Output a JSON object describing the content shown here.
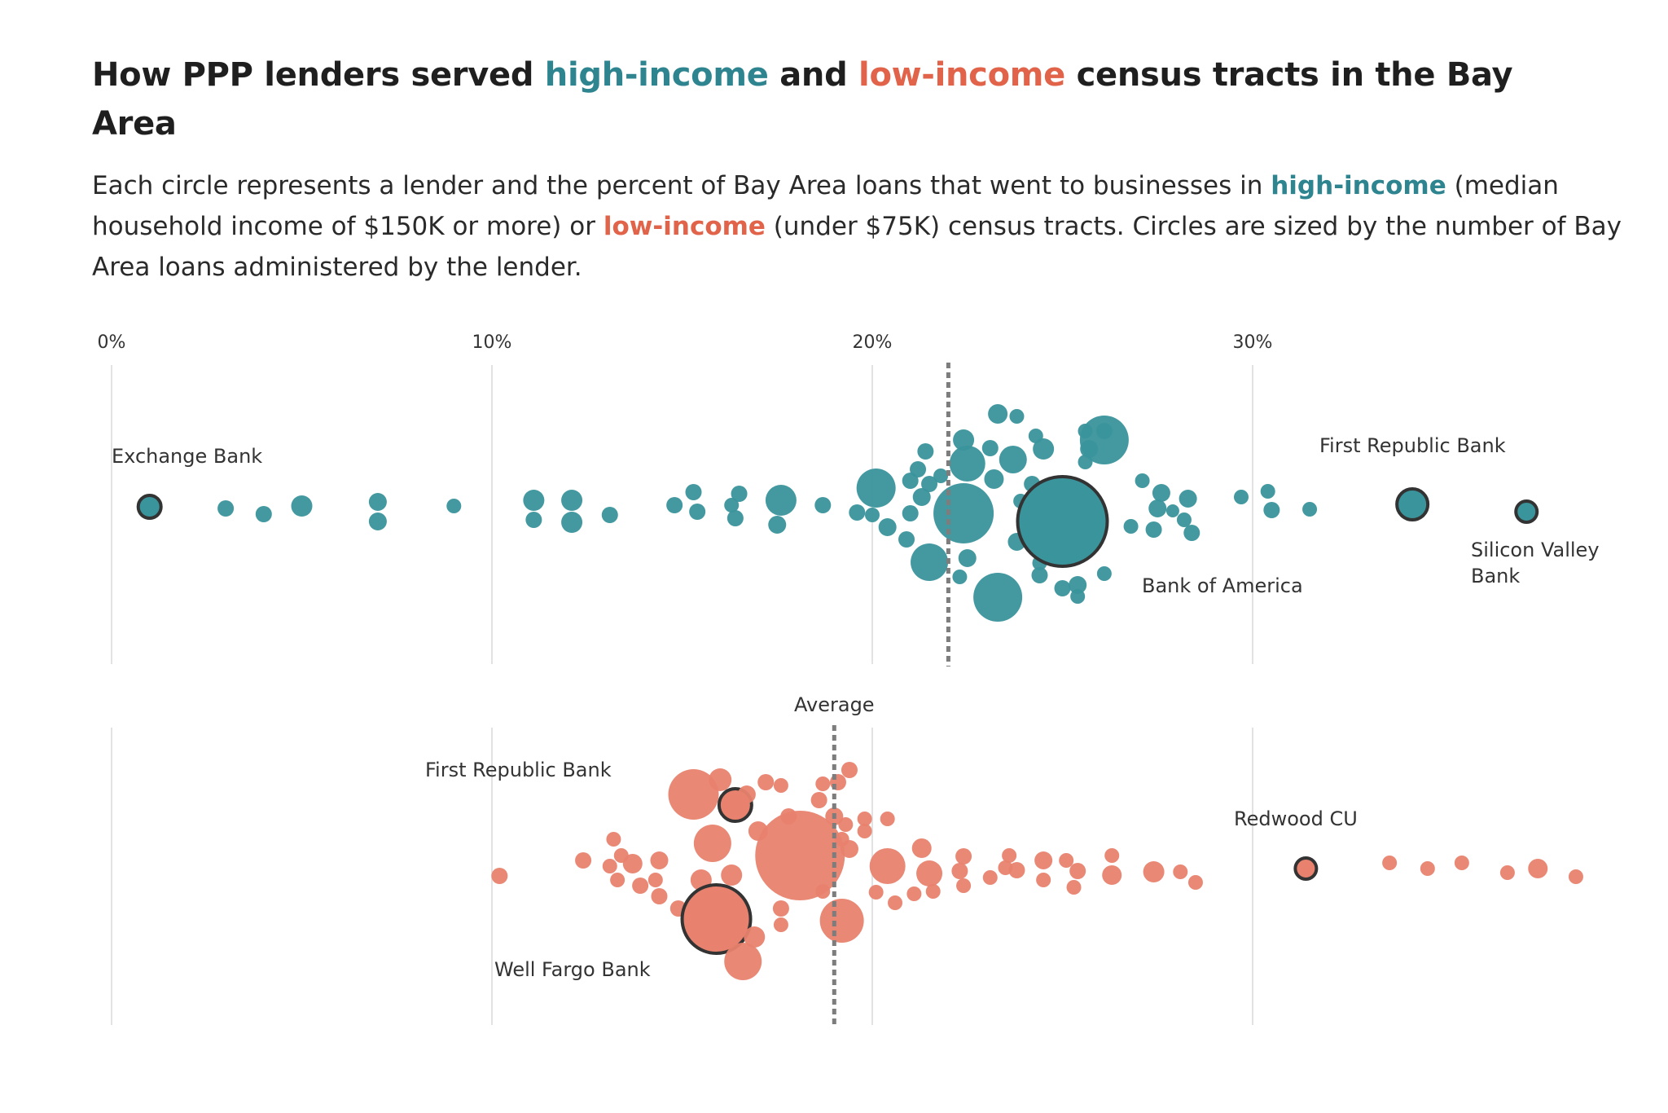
{
  "header": {
    "title_part1": "How PPP lenders served ",
    "title_high": "high-income",
    "title_part2": " and ",
    "title_low": "low-income",
    "title_part3": " census tracts in the Bay Area",
    "desc_part1": "Each circle represents a lender and the percent of Bay Area loans that went to businesses in ",
    "desc_high": "high-income",
    "desc_part2": " (median household income of $150K or more) or ",
    "desc_low": "low-income",
    "desc_part3": " (under $75K) census tracts. Circles are sized by the number of Bay Area loans administered by the lender."
  },
  "colors": {
    "high": "#2e8590",
    "low": "#e0634a",
    "high_fill": "#3a949c",
    "low_fill": "#e8826e"
  },
  "chart_data": {
    "type": "scatter",
    "subtype": "beeswarm",
    "x_unit": "percent",
    "xlim": [
      0,
      35
    ],
    "ticks": [
      {
        "value": 0,
        "label": "0%"
      },
      {
        "value": 10,
        "label": "10%"
      },
      {
        "value": 20,
        "label": "20%"
      },
      {
        "value": 30,
        "label": "30%"
      }
    ],
    "average_label": "Average",
    "series": [
      {
        "name": "high-income",
        "average": 22.0,
        "labels": [
          {
            "text": "Exchange Bank",
            "lines": [
              "Exchange Bank"
            ]
          },
          {
            "text": "First Republic Bank",
            "lines": [
              "First Republic Bank"
            ]
          },
          {
            "text": "Silicon Valley Bank",
            "lines": [
              "Silicon Valley",
              "Bank"
            ]
          },
          {
            "text": "Bank of America",
            "lines": [
              "Bank of America"
            ]
          }
        ],
        "points": [
          {
            "x": 1.0,
            "dy": 2,
            "r": 14,
            "name": "Exchange Bank"
          },
          {
            "x": 3.0,
            "dy": 4,
            "r": 10
          },
          {
            "x": 4.0,
            "dy": 11,
            "r": 10
          },
          {
            "x": 5.0,
            "dy": 1,
            "r": 13
          },
          {
            "x": 7.0,
            "dy": -4,
            "r": 11
          },
          {
            "x": 7.0,
            "dy": 20,
            "r": 11
          },
          {
            "x": 9.0,
            "dy": 1,
            "r": 9
          },
          {
            "x": 11.1,
            "dy": -6,
            "r": 13
          },
          {
            "x": 11.1,
            "dy": 18,
            "r": 10
          },
          {
            "x": 12.1,
            "dy": -6,
            "r": 13
          },
          {
            "x": 12.1,
            "dy": 21,
            "r": 13
          },
          {
            "x": 13.1,
            "dy": 12,
            "r": 10
          },
          {
            "x": 14.8,
            "dy": 0,
            "r": 10
          },
          {
            "x": 15.3,
            "dy": -16,
            "r": 10
          },
          {
            "x": 15.4,
            "dy": 8,
            "r": 10
          },
          {
            "x": 16.3,
            "dy": 0,
            "r": 9
          },
          {
            "x": 16.5,
            "dy": -14,
            "r": 10
          },
          {
            "x": 16.4,
            "dy": 16,
            "r": 10
          },
          {
            "x": 17.6,
            "dy": -6,
            "r": 19
          },
          {
            "x": 17.5,
            "dy": 24,
            "r": 11
          },
          {
            "x": 18.7,
            "dy": 0,
            "r": 10
          },
          {
            "x": 19.6,
            "dy": 9,
            "r": 10
          },
          {
            "x": 20.1,
            "dy": -21,
            "r": 24
          },
          {
            "x": 20.0,
            "dy": 12,
            "r": 9
          },
          {
            "x": 20.4,
            "dy": 27,
            "r": 11
          },
          {
            "x": 21.4,
            "dy": -66,
            "r": 10
          },
          {
            "x": 21.2,
            "dy": -44,
            "r": 10
          },
          {
            "x": 21.3,
            "dy": -10,
            "r": 11
          },
          {
            "x": 21.0,
            "dy": -30,
            "r": 10
          },
          {
            "x": 21.0,
            "dy": 10,
            "r": 10
          },
          {
            "x": 20.9,
            "dy": 42,
            "r": 10
          },
          {
            "x": 21.5,
            "dy": -26,
            "r": 10
          },
          {
            "x": 21.8,
            "dy": -36,
            "r": 9
          },
          {
            "x": 22.4,
            "dy": -80,
            "r": 13
          },
          {
            "x": 22.5,
            "dy": -51,
            "r": 22
          },
          {
            "x": 22.4,
            "dy": 10,
            "r": 37
          },
          {
            "x": 21.5,
            "dy": 70,
            "r": 23
          },
          {
            "x": 22.5,
            "dy": 65,
            "r": 11
          },
          {
            "x": 22.3,
            "dy": 88,
            "r": 9
          },
          {
            "x": 23.1,
            "dy": -70,
            "r": 10
          },
          {
            "x": 23.2,
            "dy": -32,
            "r": 12
          },
          {
            "x": 23.3,
            "dy": -112,
            "r": 12
          },
          {
            "x": 23.7,
            "dy": -56,
            "r": 17
          },
          {
            "x": 23.9,
            "dy": -5,
            "r": 9
          },
          {
            "x": 23.8,
            "dy": 45,
            "r": 11
          },
          {
            "x": 23.3,
            "dy": 113,
            "r": 30
          },
          {
            "x": 23.8,
            "dy": -109,
            "r": 9
          },
          {
            "x": 24.3,
            "dy": -85,
            "r": 9
          },
          {
            "x": 24.5,
            "dy": -69,
            "r": 13
          },
          {
            "x": 24.2,
            "dy": -26,
            "r": 10
          },
          {
            "x": 24.4,
            "dy": 71,
            "r": 9
          },
          {
            "x": 24.4,
            "dy": 86,
            "r": 10
          },
          {
            "x": 25.0,
            "dy": 20,
            "r": 55,
            "name": "Bank of America"
          },
          {
            "x": 25.0,
            "dy": 102,
            "r": 10
          },
          {
            "x": 25.6,
            "dy": -91,
            "r": 9
          },
          {
            "x": 26.1,
            "dy": -91,
            "r": 10
          },
          {
            "x": 25.7,
            "dy": -69,
            "r": 11
          },
          {
            "x": 25.6,
            "dy": -53,
            "r": 9
          },
          {
            "x": 25.4,
            "dy": 98,
            "r": 11
          },
          {
            "x": 25.4,
            "dy": 112,
            "r": 9
          },
          {
            "x": 26.1,
            "dy": 84,
            "r": 9
          },
          {
            "x": 26.1,
            "dy": -80,
            "r": 30
          },
          {
            "x": 27.1,
            "dy": -30,
            "r": 9
          },
          {
            "x": 27.6,
            "dy": -15,
            "r": 11
          },
          {
            "x": 27.5,
            "dy": 4,
            "r": 11
          },
          {
            "x": 26.8,
            "dy": 26,
            "r": 9
          },
          {
            "x": 27.4,
            "dy": 30,
            "r": 10
          },
          {
            "x": 28.3,
            "dy": -8,
            "r": 11
          },
          {
            "x": 27.9,
            "dy": 7,
            "r": 8
          },
          {
            "x": 28.2,
            "dy": 18,
            "r": 9
          },
          {
            "x": 28.4,
            "dy": 34,
            "r": 10
          },
          {
            "x": 29.7,
            "dy": -10,
            "r": 9
          },
          {
            "x": 30.4,
            "dy": -17,
            "r": 9
          },
          {
            "x": 30.5,
            "dy": 6,
            "r": 10
          },
          {
            "x": 31.5,
            "dy": 5,
            "r": 9
          },
          {
            "x": 34.2,
            "dy": -1,
            "r": 19,
            "name": "First Republic Bank"
          },
          {
            "x": 37.2,
            "dy": 8,
            "r": 13,
            "name": "Silicon Valley Bank"
          }
        ]
      },
      {
        "name": "low-income",
        "average": 19.0,
        "labels": [
          {
            "text": "First Republic Bank",
            "lines": [
              "First Republic Bank"
            ]
          },
          {
            "text": "Well Fargo Bank",
            "lines": [
              "Well Fargo Bank"
            ]
          },
          {
            "text": "Redwood CU",
            "lines": [
              "Redwood CU"
            ]
          }
        ],
        "points": [
          {
            "x": 10.2,
            "dy": 15,
            "r": 10
          },
          {
            "x": 12.4,
            "dy": -4,
            "r": 10
          },
          {
            "x": 13.1,
            "dy": 3,
            "r": 9
          },
          {
            "x": 13.2,
            "dy": -30,
            "r": 9
          },
          {
            "x": 13.3,
            "dy": 20,
            "r": 9
          },
          {
            "x": 13.4,
            "dy": -10,
            "r": 9
          },
          {
            "x": 13.7,
            "dy": 0,
            "r": 12
          },
          {
            "x": 13.9,
            "dy": 27,
            "r": 10
          },
          {
            "x": 14.4,
            "dy": -4,
            "r": 11
          },
          {
            "x": 14.3,
            "dy": 20,
            "r": 9
          },
          {
            "x": 14.4,
            "dy": 40,
            "r": 10
          },
          {
            "x": 14.9,
            "dy": 55,
            "r": 10
          },
          {
            "x": 15.3,
            "dy": -85,
            "r": 31
          },
          {
            "x": 15.5,
            "dy": 20,
            "r": 13
          },
          {
            "x": 15.8,
            "dy": -25,
            "r": 23
          },
          {
            "x": 16.0,
            "dy": -103,
            "r": 14
          },
          {
            "x": 16.3,
            "dy": 14,
            "r": 13
          },
          {
            "x": 16.4,
            "dy": -72,
            "r": 20,
            "name": "First Republic Bank"
          },
          {
            "x": 15.9,
            "dy": 68,
            "r": 42,
            "name": "Well Fargo Bank"
          },
          {
            "x": 16.7,
            "dy": -85,
            "r": 11
          },
          {
            "x": 16.6,
            "dy": 120,
            "r": 23
          },
          {
            "x": 16.9,
            "dy": 90,
            "r": 13
          },
          {
            "x": 17.0,
            "dy": -40,
            "r": 12
          },
          {
            "x": 17.2,
            "dy": -100,
            "r": 10
          },
          {
            "x": 17.6,
            "dy": -96,
            "r": 9
          },
          {
            "x": 17.6,
            "dy": 55,
            "r": 10
          },
          {
            "x": 17.6,
            "dy": 75,
            "r": 9
          },
          {
            "x": 18.1,
            "dy": -10,
            "r": 55
          },
          {
            "x": 17.8,
            "dy": -58,
            "r": 10
          },
          {
            "x": 18.7,
            "dy": -98,
            "r": 9
          },
          {
            "x": 19.1,
            "dy": -100,
            "r": 10
          },
          {
            "x": 18.6,
            "dy": -78,
            "r": 10
          },
          {
            "x": 19.0,
            "dy": -58,
            "r": 11
          },
          {
            "x": 19.3,
            "dy": -48,
            "r": 9
          },
          {
            "x": 19.2,
            "dy": -30,
            "r": 9
          },
          {
            "x": 19.4,
            "dy": -18,
            "r": 11
          },
          {
            "x": 19.4,
            "dy": -115,
            "r": 10
          },
          {
            "x": 18.7,
            "dy": 34,
            "r": 9
          },
          {
            "x": 19.2,
            "dy": 70,
            "r": 27
          },
          {
            "x": 19.8,
            "dy": -55,
            "r": 9
          },
          {
            "x": 20.4,
            "dy": -55,
            "r": 9
          },
          {
            "x": 19.8,
            "dy": -40,
            "r": 9
          },
          {
            "x": 20.4,
            "dy": 3,
            "r": 22
          },
          {
            "x": 20.1,
            "dy": 35,
            "r": 9
          },
          {
            "x": 20.6,
            "dy": 48,
            "r": 9
          },
          {
            "x": 21.3,
            "dy": -19,
            "r": 12
          },
          {
            "x": 21.5,
            "dy": 12,
            "r": 16
          },
          {
            "x": 21.6,
            "dy": 34,
            "r": 9
          },
          {
            "x": 21.1,
            "dy": 37,
            "r": 9
          },
          {
            "x": 22.4,
            "dy": -9,
            "r": 10
          },
          {
            "x": 22.3,
            "dy": 9,
            "r": 10
          },
          {
            "x": 22.4,
            "dy": 27,
            "r": 9
          },
          {
            "x": 23.1,
            "dy": 17,
            "r": 9
          },
          {
            "x": 23.5,
            "dy": 5,
            "r": 9
          },
          {
            "x": 23.6,
            "dy": -10,
            "r": 9
          },
          {
            "x": 23.8,
            "dy": 8,
            "r": 10
          },
          {
            "x": 24.5,
            "dy": -4,
            "r": 11
          },
          {
            "x": 24.5,
            "dy": 20,
            "r": 9
          },
          {
            "x": 25.1,
            "dy": -4,
            "r": 9
          },
          {
            "x": 25.4,
            "dy": 9,
            "r": 10
          },
          {
            "x": 25.3,
            "dy": 29,
            "r": 9
          },
          {
            "x": 26.3,
            "dy": -10,
            "r": 9
          },
          {
            "x": 26.3,
            "dy": 14,
            "r": 12
          },
          {
            "x": 27.4,
            "dy": 10,
            "r": 13
          },
          {
            "x": 28.1,
            "dy": 10,
            "r": 9
          },
          {
            "x": 28.5,
            "dy": 23,
            "r": 9
          },
          {
            "x": 31.4,
            "dy": 6,
            "r": 13,
            "name": "Redwood CU"
          },
          {
            "x": 33.6,
            "dy": -1,
            "r": 9
          },
          {
            "x": 34.6,
            "dy": 6,
            "r": 9
          },
          {
            "x": 35.5,
            "dy": -1,
            "r": 9
          },
          {
            "x": 36.7,
            "dy": 11,
            "r": 9
          },
          {
            "x": 37.5,
            "dy": 6,
            "r": 12
          },
          {
            "x": 38.5,
            "dy": 16,
            "r": 9
          }
        ]
      }
    ]
  }
}
